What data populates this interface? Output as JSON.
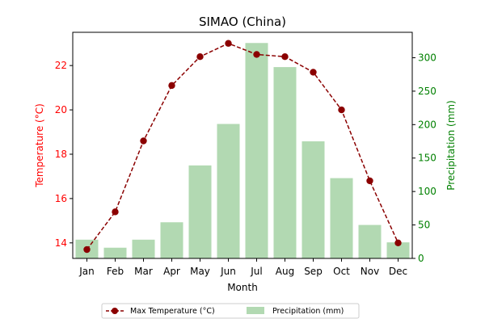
{
  "chart_data": {
    "type": "bar+line",
    "title": "SIMAO (China)",
    "xlabel": "Month",
    "ylabel_left": "Temperature (°C)",
    "ylabel_right": "Precipitation (mm)",
    "categories": [
      "Jan",
      "Feb",
      "Mar",
      "Apr",
      "May",
      "Jun",
      "Jul",
      "Aug",
      "Sep",
      "Oct",
      "Nov",
      "Dec"
    ],
    "y_left_lim": [
      13.3,
      23.5
    ],
    "y_left_ticks": [
      14,
      16,
      18,
      20,
      22
    ],
    "y_right_lim": [
      0,
      338
    ],
    "y_right_ticks": [
      0,
      50,
      100,
      150,
      200,
      250,
      300
    ],
    "series": [
      {
        "name": "Max Temperature (°C)",
        "type": "line",
        "axis": "left",
        "color": "#8b0000",
        "values": [
          13.7,
          15.4,
          18.6,
          21.1,
          22.4,
          23.0,
          22.5,
          22.4,
          21.7,
          20.0,
          16.8,
          14.0
        ]
      },
      {
        "name": "Precipitation (mm)",
        "type": "bar",
        "axis": "right",
        "color": "#b2d9b2",
        "values": [
          28,
          16,
          28,
          54,
          139,
          201,
          322,
          286,
          175,
          120,
          50,
          24
        ]
      }
    ],
    "left_axis_color": "#ff0000",
    "right_axis_color": "#008000",
    "legend_position": "bottom-center",
    "grid": false
  }
}
